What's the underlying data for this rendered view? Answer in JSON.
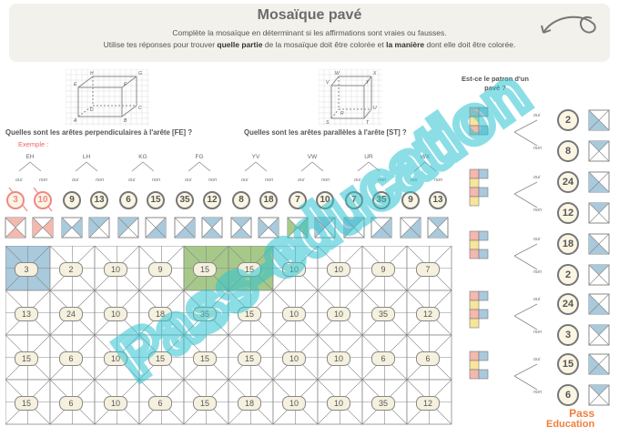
{
  "header": {
    "title": "Mosaïque pavé",
    "line1": "Complète la mosaïque en déterminant si les affirmations sont vraies ou fausses.",
    "line2_a": "Utilise tes réponses pour trouver ",
    "line2_b": "quelle partie",
    "line2_c": " de la mosaïque doit être colorée et ",
    "line2_d": "la manière",
    "line2_e": " dont elle doit être colorée."
  },
  "questions": {
    "perp": "Quelles sont les arêtes perpendiculaires à l'arête [FE] ?",
    "para": "Quelles sont les arêtes parallèles à l'arête [ST] ?",
    "patron": "Est-ce le patron d'un pavé ?",
    "exemple": "Exemple :"
  },
  "cube_labels": {
    "left": [
      "E",
      "H",
      "F",
      "G",
      "A",
      "D",
      "B",
      "C"
    ],
    "right": [
      "V",
      "W",
      "Y",
      "X",
      "S",
      "R",
      "T",
      "U"
    ]
  },
  "edges": [
    {
      "name": "EH",
      "oui": "oui",
      "non": "non",
      "values": [
        "3",
        "10"
      ]
    },
    {
      "name": "LH",
      "oui": "oui",
      "non": "non",
      "values": [
        "9",
        "13"
      ]
    },
    {
      "name": "KG",
      "oui": "oui",
      "non": "non",
      "values": [
        "6",
        "15"
      ]
    },
    {
      "name": "FG",
      "oui": "oui",
      "non": "non",
      "values": [
        "35",
        "12"
      ]
    },
    {
      "name": "YV",
      "oui": "oui",
      "non": "non",
      "values": [
        "8",
        "18"
      ]
    },
    {
      "name": "VW",
      "oui": "oui",
      "non": "non",
      "values": [
        "7",
        "10"
      ]
    },
    {
      "name": "UR",
      "oui": "oui",
      "non": "non",
      "values": [
        "7",
        "35"
      ]
    },
    {
      "name": "WX",
      "oui": "oui",
      "non": "non",
      "values": [
        "9",
        "13"
      ]
    }
  ],
  "mosaic_rows": [
    [
      "3",
      "2",
      "10",
      "9",
      "15",
      "15",
      "10",
      "10",
      "9",
      "7"
    ],
    [
      "13",
      "24",
      "10",
      "18",
      "35",
      "15",
      "10",
      "10",
      "35",
      "12"
    ],
    [
      "15",
      "6",
      "10",
      "15",
      "15",
      "15",
      "10",
      "10",
      "6",
      "6"
    ],
    [
      "15",
      "6",
      "10",
      "6",
      "15",
      "18",
      "10",
      "10",
      "35",
      "12"
    ]
  ],
  "patron_answers": [
    {
      "oui": "oui",
      "non": "non",
      "values": [
        "2",
        "8"
      ]
    },
    {
      "oui": "oui",
      "non": "non",
      "values": [
        "24",
        "12"
      ]
    },
    {
      "oui": "oui",
      "non": "non",
      "values": [
        "18",
        "2"
      ]
    },
    {
      "oui": "oui",
      "non": "non",
      "values": [
        "24",
        "3"
      ]
    },
    {
      "oui": "oui",
      "non": "non",
      "values": [
        "15",
        "6"
      ]
    }
  ],
  "watermark": {
    "pass": "Pass",
    "education": "Education",
    "diagonal": "Pass-education"
  },
  "colors": {
    "blue": "#a9c9dc",
    "pink": "#f4b8ae",
    "yellow": "#f6e59a",
    "green": "#a6c98a",
    "orange": "#f07f3c",
    "teal": "#2fc4d2"
  }
}
